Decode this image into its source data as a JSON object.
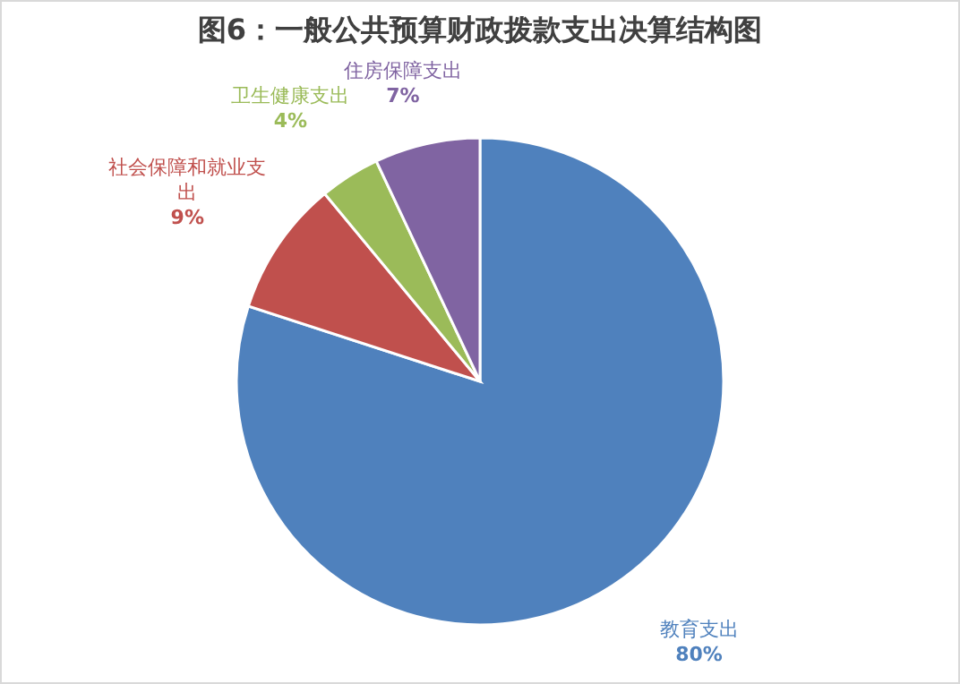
{
  "chart_data": {
    "type": "pie",
    "title": "图6：一般公共预算财政拨款支出决算结构图",
    "categories": [
      "教育支出",
      "社会保障和就业支出",
      "卫生健康支出",
      "住房保障支出"
    ],
    "values": [
      80,
      9,
      4,
      7
    ],
    "colors": [
      "#4f81bd",
      "#c0504d",
      "#9bbb59",
      "#8064a2"
    ],
    "value_labels": [
      "80%",
      "9%",
      "4%",
      "7%"
    ]
  }
}
